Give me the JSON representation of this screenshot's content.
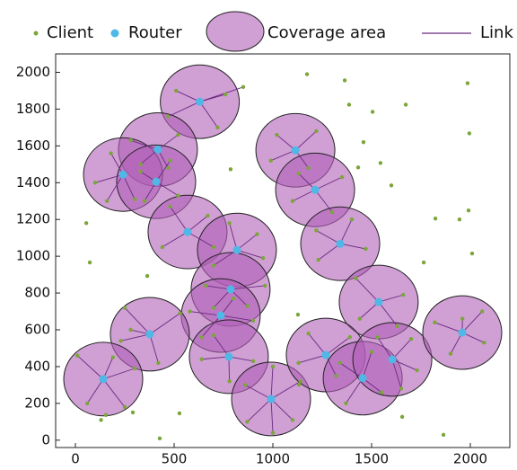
{
  "chart_data": {
    "type": "scatter",
    "xlim": [
      -100,
      2200
    ],
    "ylim": [
      -40,
      2100
    ],
    "xticks": [
      0,
      500,
      1000,
      1500,
      2000
    ],
    "yticks": [
      0,
      200,
      400,
      600,
      800,
      1000,
      1200,
      1400,
      1600,
      1800,
      2000
    ],
    "series": [
      {
        "name": "Client",
        "color": "#7aa63a",
        "x": [
          510,
          760,
          850,
          470,
          720,
          280,
          520,
          470,
          330,
          100,
          180,
          300,
          160,
          480,
          520,
          350,
          330,
          440,
          480,
          670,
          700,
          700,
          920,
          950,
          780,
          660,
          960,
          870,
          700,
          580,
          900,
          640,
          800,
          640,
          900,
          780,
          700,
          250,
          230,
          420,
          530,
          280,
          10,
          60,
          250,
          300,
          190,
          870,
          1100,
          1000,
          1140,
          860,
          1000,
          990,
          1220,
          1180,
          1020,
          1100,
          1350,
          1300,
          1130,
          1220,
          1470,
          1400,
          1230,
          1420,
          1660,
          1630,
          1440,
          1130,
          1390,
          1320,
          1180,
          1370,
          1550,
          1500,
          1340,
          1700,
          1730,
          1530,
          1650,
          1820,
          2060,
          2070,
          1900,
          1960,
          55,
          73,
          364,
          155,
          291,
          527,
          427,
          1173,
          1364,
          1386,
          1505,
          1673,
          1459,
          1432,
          1600,
          1545,
          786,
          1823,
          1945,
          1991,
          1995,
          1986,
          2009,
          1764,
          1127,
          1132,
          1655,
          1864,
          130
        ],
        "y": [
          1900,
          1880,
          1920,
          1760,
          1700,
          1630,
          1660,
          1480,
          1500,
          1400,
          1560,
          1310,
          1300,
          1520,
          1330,
          1300,
          1460,
          1050,
          1270,
          1220,
          1050,
          950,
          1120,
          990,
          1180,
          840,
          840,
          730,
          720,
          700,
          650,
          560,
          770,
          440,
          430,
          320,
          570,
          720,
          540,
          420,
          690,
          600,
          460,
          200,
          180,
          390,
          450,
          100,
          110,
          400,
          320,
          300,
          40,
          1520,
          1680,
          1480,
          1660,
          1300,
          1430,
          1240,
          1450,
          1140,
          1040,
          1200,
          980,
          880,
          790,
          620,
          660,
          420,
          560,
          350,
          580,
          200,
          260,
          480,
          420,
          550,
          380,
          560,
          280,
          640,
          700,
          530,
          470,
          660,
          1180,
          966,
          893,
          137,
          151,
          146,
          10,
          1990,
          1956,
          1824,
          1785,
          1824,
          1620,
          1483,
          1385,
          1507,
          1473,
          1205,
          1200,
          1249,
          1668,
          1941,
          1015,
          966,
          683,
          302,
          127,
          29,
          110
        ],
        "link": [
          0,
          0,
          0,
          0,
          0,
          1,
          1,
          1,
          1,
          2,
          2,
          2,
          2,
          3,
          3,
          3,
          3,
          4,
          4,
          4,
          4,
          5,
          5,
          5,
          5,
          6,
          6,
          6,
          6,
          7,
          7,
          7,
          7,
          8,
          8,
          8,
          8,
          9,
          9,
          9,
          9,
          9,
          10,
          10,
          10,
          10,
          10,
          11,
          11,
          11,
          11,
          11,
          11,
          12,
          12,
          12,
          12,
          13,
          13,
          13,
          13,
          14,
          14,
          14,
          14,
          15,
          15,
          15,
          15,
          16,
          16,
          16,
          16,
          17,
          17,
          17,
          17,
          18,
          18,
          18,
          18,
          19,
          19,
          19,
          19,
          19,
          null,
          null,
          null,
          null,
          null,
          null,
          null,
          null,
          null,
          null,
          null,
          null,
          null,
          null,
          null,
          null,
          null,
          null,
          null,
          null,
          null,
          null,
          null,
          null,
          null,
          null,
          null,
          null,
          null
        ]
      },
      {
        "name": "Router",
        "color": "#4fb8e6",
        "x": [
          630,
          418,
          241,
          409,
          568,
          818,
          786,
          736,
          777,
          377,
          141,
          991,
          1114,
          1214,
          1341,
          1536,
          1268,
          1455,
          1605,
          1959
        ],
        "y": [
          1840,
          1580,
          1444,
          1405,
          1132,
          1034,
          820,
          678,
          454,
          576,
          332,
          224,
          1576,
          1361,
          1068,
          751,
          463,
          337,
          439,
          585
        ],
        "radius": [
          200,
          200,
          200,
          200,
          200,
          200,
          200,
          200,
          200,
          200,
          200,
          200,
          200,
          200,
          200,
          200,
          200,
          200,
          200,
          200
        ]
      }
    ],
    "coverage": {
      "name": "Coverage area",
      "color": "#b05fb8"
    },
    "links": {
      "name": "Link",
      "color": "#6a2a80"
    }
  }
}
